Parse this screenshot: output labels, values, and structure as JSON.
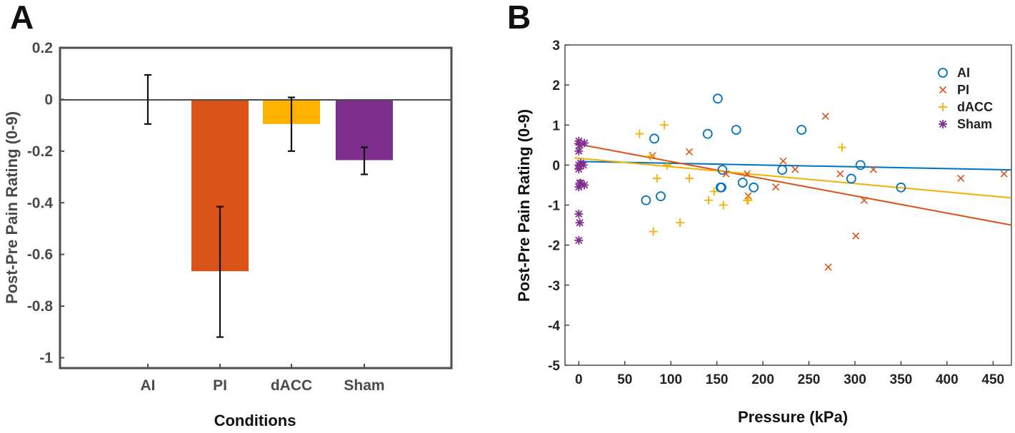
{
  "chart_data": [
    {
      "type": "bar",
      "panel": "A",
      "title": "",
      "xlabel": "Conditions",
      "ylabel": "Post-Pre Pain Rating (0-9)",
      "ylim": [
        -1.04,
        0.2
      ],
      "yticks": [
        0.2,
        0,
        -0.2,
        -0.4,
        -0.6,
        -0.8,
        -1
      ],
      "ytick_labels": [
        "0.2",
        "0",
        "-0.2",
        "-0.4",
        "-0.6",
        "-0.8",
        "-1"
      ],
      "categories": [
        "AI",
        "PI",
        "dACC",
        "Sham"
      ],
      "values": [
        0.0,
        -0.665,
        -0.095,
        -0.235
      ],
      "error_low": [
        -0.095,
        -0.92,
        -0.2,
        -0.29
      ],
      "error_high": [
        0.095,
        -0.415,
        0.008,
        -0.185
      ],
      "colors": [
        "#0072bd",
        "#d95319",
        "#ffb000",
        "#7e2f8e"
      ],
      "grid": false
    },
    {
      "type": "scatter",
      "panel": "B",
      "title": "",
      "xlabel": "Pressure (kPa)",
      "ylabel": "Post-Pre Pain Rating (0-9)",
      "xlim": [
        -15,
        470
      ],
      "ylim": [
        -5,
        3
      ],
      "xticks": [
        0,
        50,
        100,
        150,
        200,
        250,
        300,
        350,
        400,
        450
      ],
      "xtick_labels": [
        "0",
        "50",
        "100",
        "150",
        "200",
        "250",
        "300",
        "350",
        "400",
        "450"
      ],
      "yticks": [
        3,
        2,
        1,
        0,
        -1,
        -2,
        -3,
        -4,
        -5
      ],
      "ytick_labels": [
        "3",
        "2",
        "1",
        "0",
        "-1",
        "-2",
        "-3",
        "-4",
        "-5"
      ],
      "legend_position": "top-right",
      "grid": false,
      "series": [
        {
          "name": "AI",
          "marker": "circle",
          "color": "#0072bd",
          "x": [
            73,
            82,
            89,
            140,
            151,
            154,
            155,
            156,
            171,
            178,
            190,
            221,
            242,
            296,
            306,
            350
          ],
          "y": [
            -0.88,
            0.66,
            -0.78,
            0.78,
            1.66,
            -0.56,
            -0.56,
            -0.12,
            0.88,
            -0.44,
            -0.56,
            -0.12,
            0.88,
            -0.34,
            0.0,
            -0.56
          ],
          "fit": {
            "x": [
              0,
              470
            ],
            "y": [
              0.09,
              -0.12
            ]
          }
        },
        {
          "name": "PI",
          "marker": "x",
          "color": "#d95319",
          "x": [
            80,
            120,
            160,
            183,
            184,
            214,
            222,
            235,
            268,
            271,
            284,
            301,
            310,
            320,
            415,
            462
          ],
          "y": [
            0.23,
            0.33,
            -0.22,
            -0.22,
            -0.77,
            -0.55,
            0.1,
            -0.11,
            1.22,
            -2.55,
            -0.22,
            -1.77,
            -0.88,
            -0.11,
            -0.33,
            -0.22
          ],
          "fit": {
            "x": [
              -5,
              470
            ],
            "y": [
              0.54,
              -1.5
            ]
          }
        },
        {
          "name": "dACC",
          "marker": "plus",
          "color": "#f5b000",
          "x": [
            66,
            78,
            81,
            85,
            93,
            96,
            110,
            120,
            141,
            147,
            157,
            183,
            184,
            286
          ],
          "y": [
            0.78,
            0.22,
            -1.66,
            -0.33,
            1.0,
            0.0,
            -1.44,
            -0.33,
            -0.88,
            -0.66,
            -1.0,
            -0.88,
            -0.88,
            0.44
          ],
          "fit": {
            "x": [
              -5,
              470
            ],
            "y": [
              0.18,
              -0.82
            ]
          }
        },
        {
          "name": "Sham",
          "marker": "asterisk",
          "color": "#7e2f8e",
          "x": [
            0,
            1,
            0,
            6,
            0,
            2,
            5,
            0,
            1,
            6,
            0,
            2,
            0,
            1,
            0
          ],
          "y": [
            0.6,
            0.5,
            0.35,
            0.55,
            0.0,
            0.05,
            0.0,
            -0.1,
            -0.45,
            -0.5,
            -0.55,
            -0.45,
            -1.22,
            -1.44,
            -1.88
          ]
        }
      ]
    }
  ]
}
